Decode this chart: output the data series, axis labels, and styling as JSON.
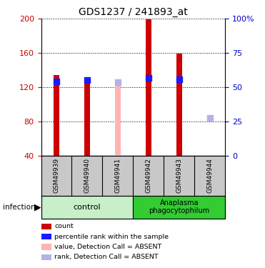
{
  "title": "GDS1237 / 241893_at",
  "samples": [
    "GSM49939",
    "GSM49940",
    "GSM49941",
    "GSM49942",
    "GSM49943",
    "GSM49944"
  ],
  "red_values": [
    134,
    129,
    null,
    199,
    159,
    40
  ],
  "blue_values": [
    127,
    128,
    null,
    131,
    129,
    null
  ],
  "pink_values": [
    null,
    null,
    122,
    null,
    null,
    null
  ],
  "light_blue_values": [
    null,
    null,
    126,
    null,
    null,
    84
  ],
  "ylim_left": [
    40,
    200
  ],
  "ylim_right": [
    0,
    100
  ],
  "yticks_left": [
    40,
    80,
    120,
    160,
    200
  ],
  "yticks_right": [
    0,
    25,
    50,
    75,
    100
  ],
  "ytick_labels_right": [
    "0",
    "25",
    "50",
    "75",
    "100%"
  ],
  "control_label": "control",
  "infected_label": "Anaplasma\nphagocytophilum",
  "infection_label": "infection",
  "legend": [
    {
      "label": "count",
      "color": "#cc0000"
    },
    {
      "label": "percentile rank within the sample",
      "color": "#1a1aff"
    },
    {
      "label": "value, Detection Call = ABSENT",
      "color": "#ffb3b3"
    },
    {
      "label": "rank, Detection Call = ABSENT",
      "color": "#b3b3e6"
    }
  ],
  "red_color": "#cc0000",
  "blue_color": "#1a1aff",
  "pink_color": "#ffb3b3",
  "light_blue_color": "#b3b3e6",
  "control_bg": "#c8f0c8",
  "infected_bg": "#33cc33",
  "sample_bg": "#c8c8c8",
  "plot_bg": "#ffffff",
  "left_axis_color": "#cc0000",
  "right_axis_color": "#0000cc",
  "bar_width": 0.18,
  "blue_sq_size": 6,
  "n_control": 3,
  "n_infected": 3
}
